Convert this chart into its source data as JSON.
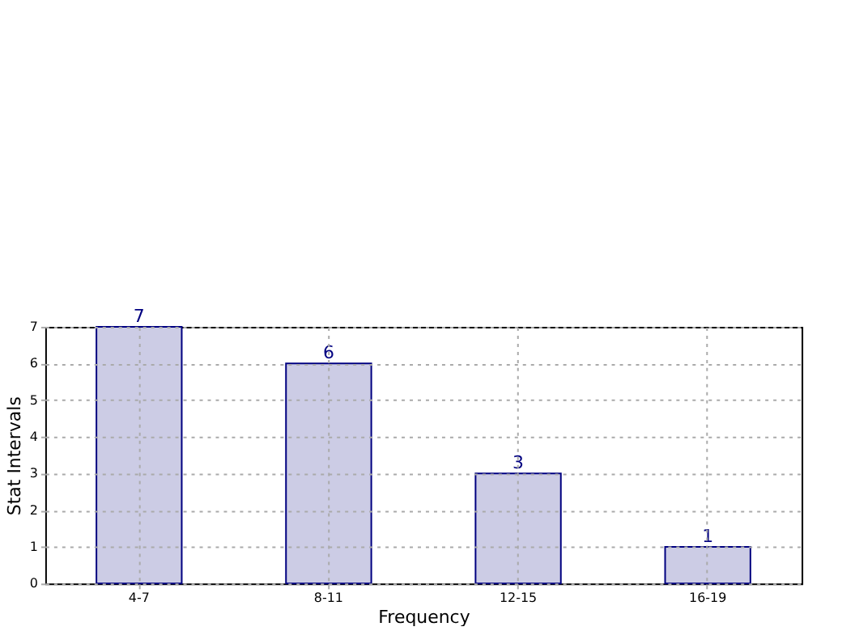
{
  "chart_data": {
    "type": "bar",
    "xlabel": "Frequency",
    "ylabel": "Stat Intervals",
    "categories": [
      "4-7",
      "8-11",
      "12-15",
      "16-19"
    ],
    "values": [
      7,
      6,
      3,
      1
    ],
    "color": "#ccccE5",
    "ylim": [
      0,
      7
    ],
    "yticks": [
      0,
      1,
      2,
      3,
      4,
      5,
      6,
      7
    ],
    "grid": true,
    "data_labels": true
  }
}
